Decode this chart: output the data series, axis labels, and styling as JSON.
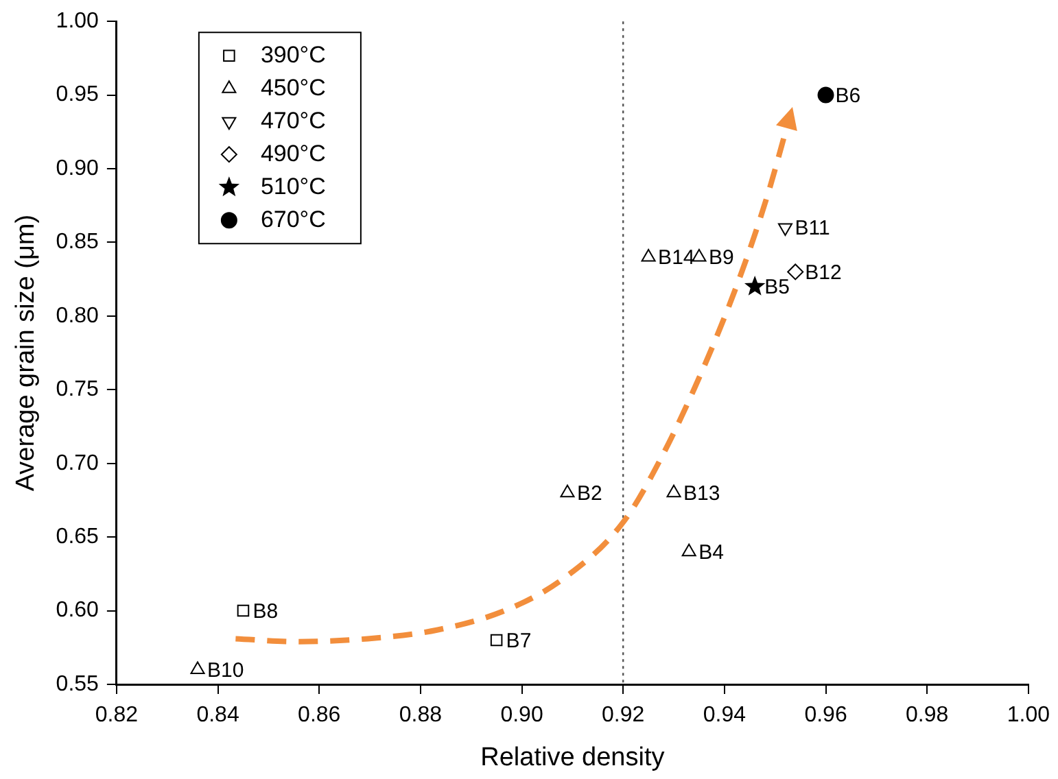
{
  "chart_data": {
    "type": "scatter",
    "xlabel": "Relative density",
    "ylabel": "Average grain size (μm)",
    "xlim": [
      0.82,
      1.0
    ],
    "xticks": [
      0.82,
      0.84,
      0.86,
      0.88,
      {
        "value": 0.9,
        "label": "0.90"
      },
      0.92,
      0.94,
      0.96,
      0.98,
      {
        "value": 1.0,
        "label": "1.00"
      }
    ],
    "ylim": [
      0.55,
      1.0
    ],
    "yticks": [
      0.55,
      {
        "value": 0.6,
        "label": "0.60"
      },
      0.65,
      {
        "value": 0.7,
        "label": "0.70"
      },
      0.75,
      {
        "value": 0.8,
        "label": "0.80"
      },
      0.85,
      {
        "value": 0.9,
        "label": "0.90"
      },
      0.95,
      {
        "value": 1.0,
        "label": "1.00"
      }
    ],
    "grid": false,
    "legend": "top left",
    "series": [
      {
        "name": "390°C",
        "color": "#000000",
        "marker": "square",
        "x": [
          0.845,
          0.895
        ],
        "values": [
          0.6,
          0.58
        ]
      },
      {
        "name": "450°C",
        "color": "#000000",
        "marker": "triangle",
        "x": [
          0.836,
          0.909,
          0.93,
          0.933,
          0.925,
          0.935
        ],
        "values": [
          0.56,
          0.68,
          0.68,
          0.64,
          0.84,
          0.84
        ]
      },
      {
        "name": "470°C",
        "color": "#000000",
        "marker": "triangle-down",
        "x": [
          0.952
        ],
        "values": [
          0.86
        ]
      },
      {
        "name": "490°C",
        "color": "#000000",
        "marker": "diamond",
        "x": [
          0.954
        ],
        "values": [
          0.83
        ]
      },
      {
        "name": "510°C",
        "color": "#000000",
        "marker": "star",
        "x": [
          0.946
        ],
        "values": [
          0.82
        ]
      },
      {
        "name": "670°C",
        "color": "#000000",
        "marker": "circle",
        "x": [
          0.96
        ],
        "values": [
          0.95
        ]
      },
      {
        "type": "line",
        "color": "#f28e3c",
        "marker": "none",
        "line_style": "dashed",
        "x": [
          0.8435,
          0.8557,
          0.8696,
          0.8834,
          0.8973,
          0.9083,
          0.92,
          0.9277,
          0.936,
          0.943,
          0.9485,
          0.9527
        ],
        "values": [
          0.581,
          0.579,
          0.581,
          0.587,
          0.601,
          0.622,
          0.66,
          0.705,
          0.766,
          0.826,
          0.882,
          0.933
        ]
      }
    ],
    "ref_lines": [
      {
        "axis": "x",
        "value": 0.92,
        "color": "#555555",
        "line_style": "dotted"
      }
    ],
    "annotations": [
      {
        "text": "B8",
        "x": 0.845,
        "y": 0.6
      },
      {
        "text": "B7",
        "x": 0.895,
        "y": 0.58
      },
      {
        "text": "B10",
        "x": 0.836,
        "y": 0.56
      },
      {
        "text": "B2",
        "x": 0.909,
        "y": 0.68
      },
      {
        "text": "B13",
        "x": 0.93,
        "y": 0.68
      },
      {
        "text": "B4",
        "x": 0.933,
        "y": 0.64
      },
      {
        "text": "B14",
        "x": 0.925,
        "y": 0.84
      },
      {
        "text": "B9",
        "x": 0.935,
        "y": 0.84
      },
      {
        "text": "B11",
        "x": 0.952,
        "y": 0.86
      },
      {
        "text": "B12",
        "x": 0.954,
        "y": 0.83
      },
      {
        "text": "B5",
        "x": 0.946,
        "y": 0.82
      },
      {
        "text": "B6",
        "x": 0.96,
        "y": 0.95
      }
    ]
  }
}
